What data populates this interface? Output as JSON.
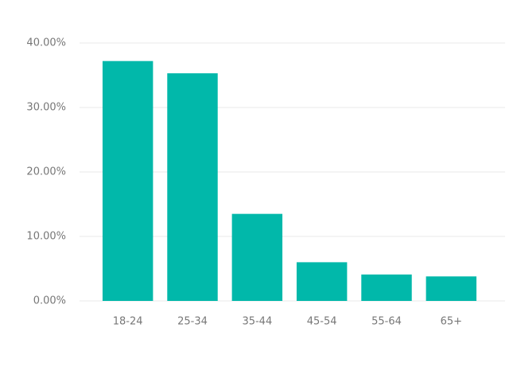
{
  "chart_data": {
    "type": "bar",
    "categories": [
      "18-24",
      "25-34",
      "35-44",
      "45-54",
      "55-64",
      "65+"
    ],
    "values": [
      37.2,
      35.3,
      13.5,
      6.0,
      4.1,
      3.8
    ],
    "color": "#01b8aa",
    "ylim": [
      0,
      40
    ],
    "yticks": [
      {
        "value": 0,
        "label": "0.00%"
      },
      {
        "value": 10,
        "label": "10.00%"
      },
      {
        "value": 20,
        "label": "20.00%"
      },
      {
        "value": 30,
        "label": "30.00%"
      },
      {
        "value": 40,
        "label": "40.00%"
      }
    ],
    "grid": true
  }
}
